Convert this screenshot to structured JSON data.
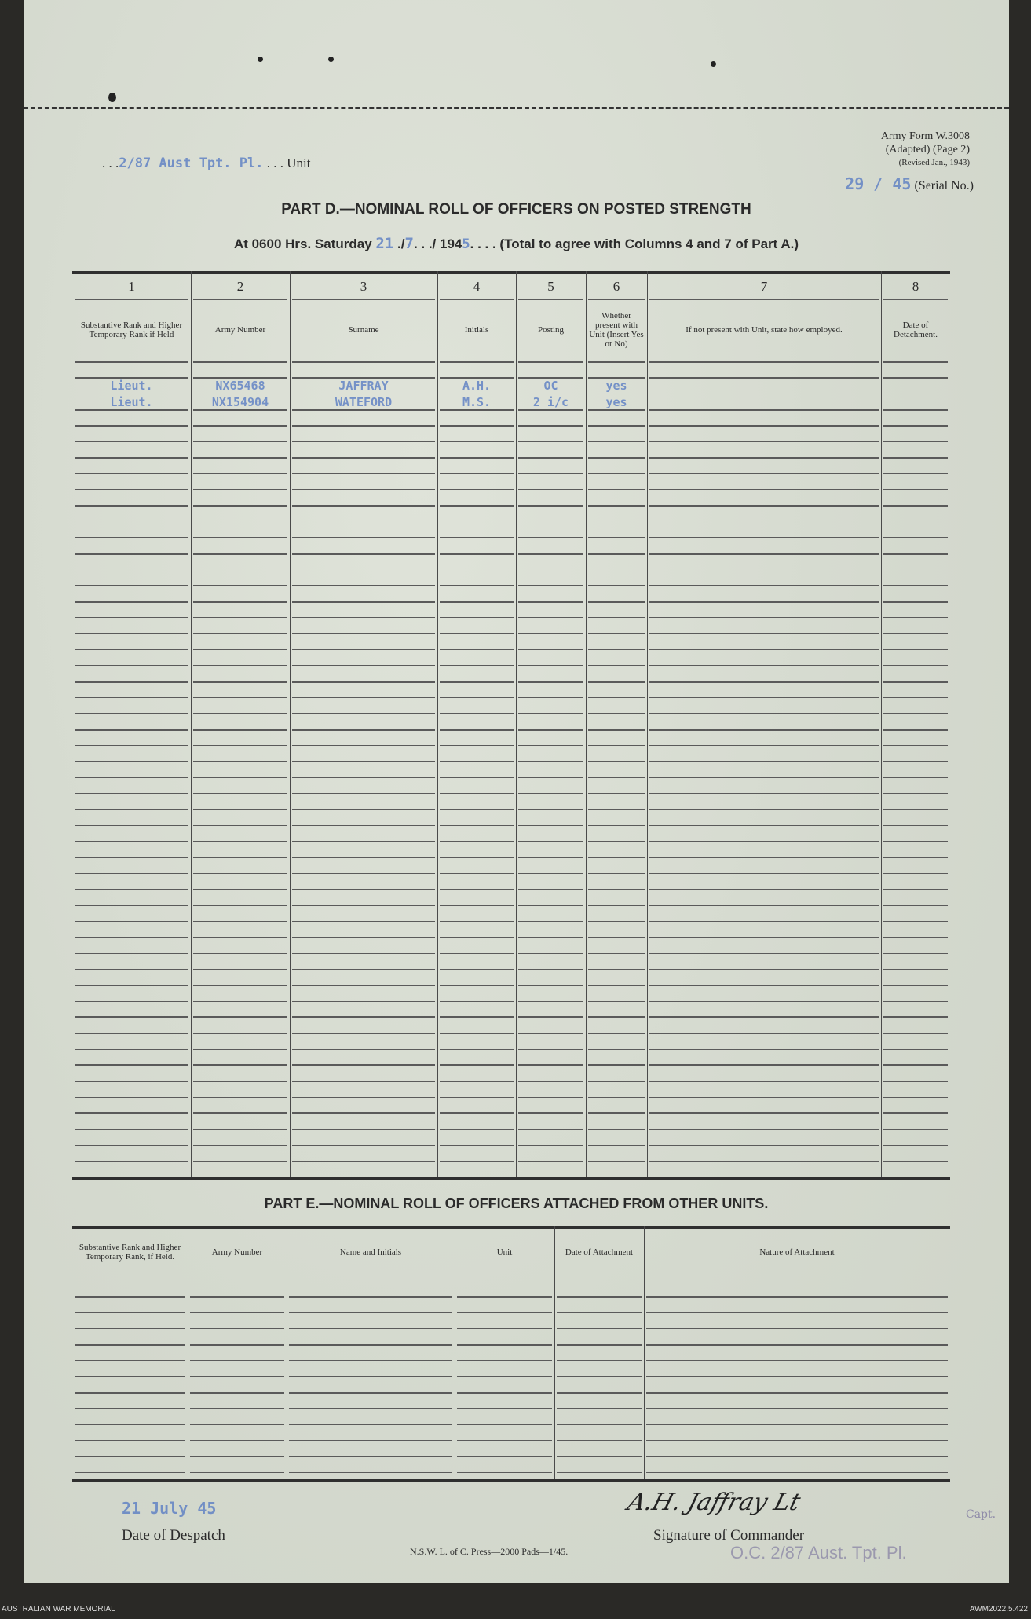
{
  "form": {
    "id_line1": "Army Form W.3008",
    "id_line2": "(Adapted) (Page 2)",
    "id_line3": "(Revised Jan., 1943)",
    "unit_value": "2/87 Aust Tpt. Pl.",
    "unit_label": "Unit",
    "serial_value": "29 / 45",
    "serial_label": "(Serial No.)"
  },
  "part_d": {
    "title": "PART D.—NOMINAL ROLL OF OFFICERS ON POSTED STRENGTH",
    "at_label": "At 0600 Hrs. Saturday",
    "date_day": "21",
    "date_month": "7",
    "date_year_prefix": "194",
    "date_year_digit": "5",
    "total_note": "(Total to agree with Columns 4 and 7 of Part A.)",
    "column_numbers": [
      "1",
      "2",
      "3",
      "4",
      "5",
      "6",
      "7",
      "8"
    ],
    "columns": [
      "Substantive Rank and Higher Temporary Rank if Held",
      "Army Number",
      "Surname",
      "Initials",
      "Posting",
      "Whether present with Unit (Insert Yes or No)",
      "If not present with Unit, state how employed.",
      "Date of Detachment."
    ],
    "rows": [
      [
        "Lieut.",
        "NX65468",
        "JAFFRAY",
        "A.H.",
        "OC",
        "yes",
        "",
        ""
      ],
      [
        "Lieut.",
        "NX154904",
        "WATEFORD",
        "M.S.",
        "2 i/c",
        "yes",
        "",
        ""
      ]
    ]
  },
  "part_e": {
    "title": "PART E.—NOMINAL ROLL OF OFFICERS ATTACHED FROM OTHER UNITS.",
    "columns": [
      "Substantive Rank and Higher Temporary Rank, if Held.",
      "Army Number",
      "Name and Initials",
      "Unit",
      "Date of Attachment",
      "Nature of Attachment"
    ]
  },
  "bottom": {
    "despatch_value": "21 July 45",
    "despatch_label": "Date of Despatch",
    "signature_label": "Signature of Commander",
    "signature_text": "A.H. Jaffray Lt",
    "stamp": "O.C. 2/87 Aust. Tpt. Pl.",
    "stamp_suffix": "Capt.",
    "press": "N.S.W. L. of C. Press—2000 Pads—1/45."
  },
  "footer": {
    "left": "AUSTRALIAN WAR MEMORIAL",
    "right": "AWM2022.5.422"
  },
  "colors": {
    "typed": "#5b7ec4",
    "paper": "#d9ddd2",
    "stamp": "#8e8aa8"
  }
}
